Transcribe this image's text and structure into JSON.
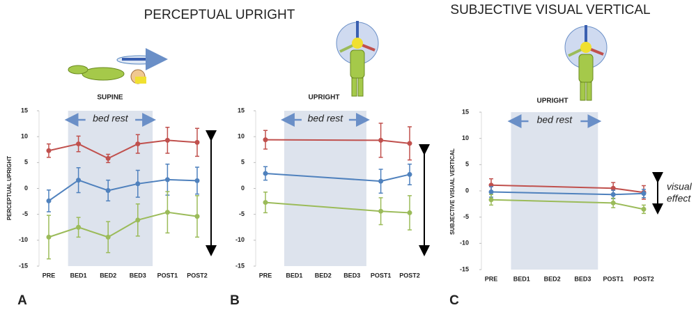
{
  "chart_data": [
    {
      "type": "line",
      "title": "PERCEPTUAL UPRIGHT",
      "subtitle": "SUPINE",
      "ylabel": "PERCEPTUAL UPRIGHT",
      "panel": "A",
      "annotation": "bed rest",
      "categories": [
        "PRE",
        "BED1",
        "BED2",
        "BED3",
        "POST1",
        "POST2"
      ],
      "ylim": [
        -15,
        15
      ],
      "yticks": [
        -15,
        -10,
        -5,
        0,
        5,
        10,
        15
      ],
      "series": [
        {
          "color": "#c0504d",
          "values": [
            7.3,
            8.6,
            5.8,
            8.6,
            9.3,
            8.9
          ],
          "errors": [
            1.3,
            1.5,
            0.8,
            1.8,
            2.5,
            2.7
          ]
        },
        {
          "color": "#4f81bd",
          "values": [
            -2.4,
            1.6,
            -0.4,
            0.9,
            1.7,
            1.5
          ],
          "errors": [
            2.1,
            2.4,
            2.0,
            2.6,
            3.0,
            2.6
          ]
        },
        {
          "color": "#9bbb59",
          "values": [
            -9.4,
            -7.5,
            -9.4,
            -6.1,
            -4.6,
            -5.4
          ],
          "errors": [
            4.2,
            1.9,
            3.0,
            3.1,
            4.0,
            4.0
          ]
        }
      ]
    },
    {
      "type": "line",
      "subtitle": "UPRIGHT",
      "panel": "B",
      "annotation": "bed rest",
      "categories": [
        "PRE",
        "BED1",
        "BED2",
        "BED3",
        "POST1",
        "POST2"
      ],
      "ylim": [
        -15,
        15
      ],
      "yticks": [
        -15,
        -10,
        -5,
        0,
        5,
        10,
        15
      ],
      "series": [
        {
          "color": "#c0504d",
          "values": [
            9.4,
            null,
            null,
            null,
            9.3,
            8.7
          ],
          "errors": [
            1.8,
            null,
            null,
            null,
            3.3,
            3.2
          ]
        },
        {
          "color": "#4f81bd",
          "values": [
            2.9,
            null,
            null,
            null,
            1.4,
            2.7
          ],
          "errors": [
            1.3,
            null,
            null,
            null,
            2.3,
            2.0
          ]
        },
        {
          "color": "#9bbb59",
          "values": [
            -2.7,
            null,
            null,
            null,
            -4.4,
            -4.7
          ],
          "errors": [
            2.0,
            null,
            null,
            null,
            2.6,
            3.3
          ]
        }
      ]
    },
    {
      "type": "line",
      "title": "SUBJECTIVE VISUAL VERTICAL",
      "subtitle": "UPRIGHT",
      "ylabel": "SUBJECTIVE VISUAL VERTICAL",
      "panel": "C",
      "annotation": "bed rest",
      "side_note": [
        "visual",
        "effect"
      ],
      "categories": [
        "PRE",
        "BED1",
        "BED2",
        "BED3",
        "POST1",
        "POST2"
      ],
      "ylim": [
        -15,
        15
      ],
      "yticks": [
        -15,
        -10,
        -5,
        0,
        5,
        10,
        15
      ],
      "series": [
        {
          "color": "#c0504d",
          "values": [
            1.1,
            null,
            null,
            null,
            0.5,
            -0.3
          ],
          "errors": [
            1.2,
            null,
            null,
            null,
            1.1,
            1.3
          ]
        },
        {
          "color": "#4f81bd",
          "values": [
            -0.2,
            null,
            null,
            null,
            -0.7,
            -0.5
          ],
          "errors": [
            1.0,
            null,
            null,
            null,
            0.8,
            0.8
          ]
        },
        {
          "color": "#9bbb59",
          "values": [
            -1.7,
            null,
            null,
            null,
            -2.3,
            -3.5
          ],
          "errors": [
            1.0,
            null,
            null,
            null,
            0.9,
            0.8
          ]
        }
      ]
    }
  ]
}
